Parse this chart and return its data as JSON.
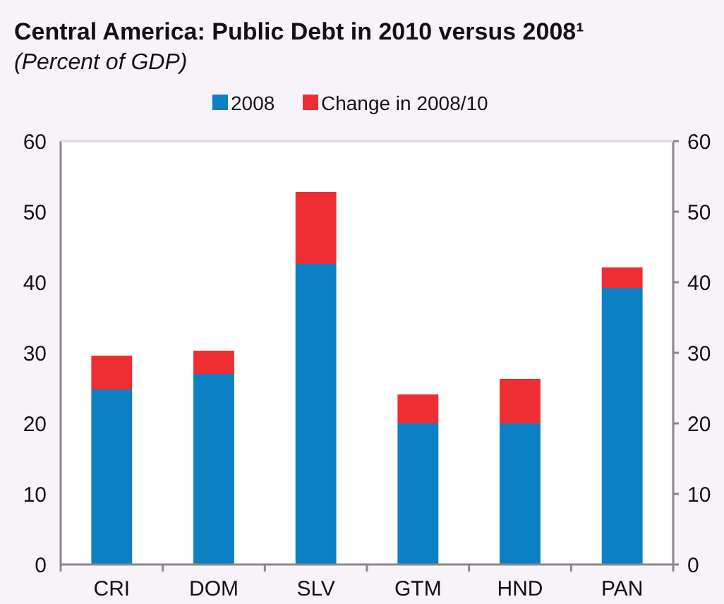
{
  "chart_data": {
    "type": "bar",
    "title": "Central America: Public Debt in 2010 versus 2008¹",
    "subtitle": "(Percent of GDP)",
    "categories": [
      "CRI",
      "DOM",
      "SLV",
      "GTM",
      "HND",
      "PAN"
    ],
    "stacked": true,
    "series": [
      {
        "name": "2008",
        "color": "#0c80c4",
        "values": [
          24.8,
          27.0,
          42.6,
          20.0,
          20.0,
          39.2
        ]
      },
      {
        "name": "Change in 2008/10",
        "color": "#ef2e33",
        "values": [
          4.8,
          3.3,
          10.2,
          4.1,
          6.3,
          2.9
        ]
      }
    ],
    "ylim": [
      0,
      60
    ],
    "yticks": [
      0,
      10,
      20,
      30,
      40,
      50,
      60
    ],
    "y2lim": [
      0,
      60
    ],
    "y2ticks": [
      0,
      10,
      20,
      30,
      40,
      50,
      60
    ],
    "grid": false,
    "legend": "top"
  }
}
